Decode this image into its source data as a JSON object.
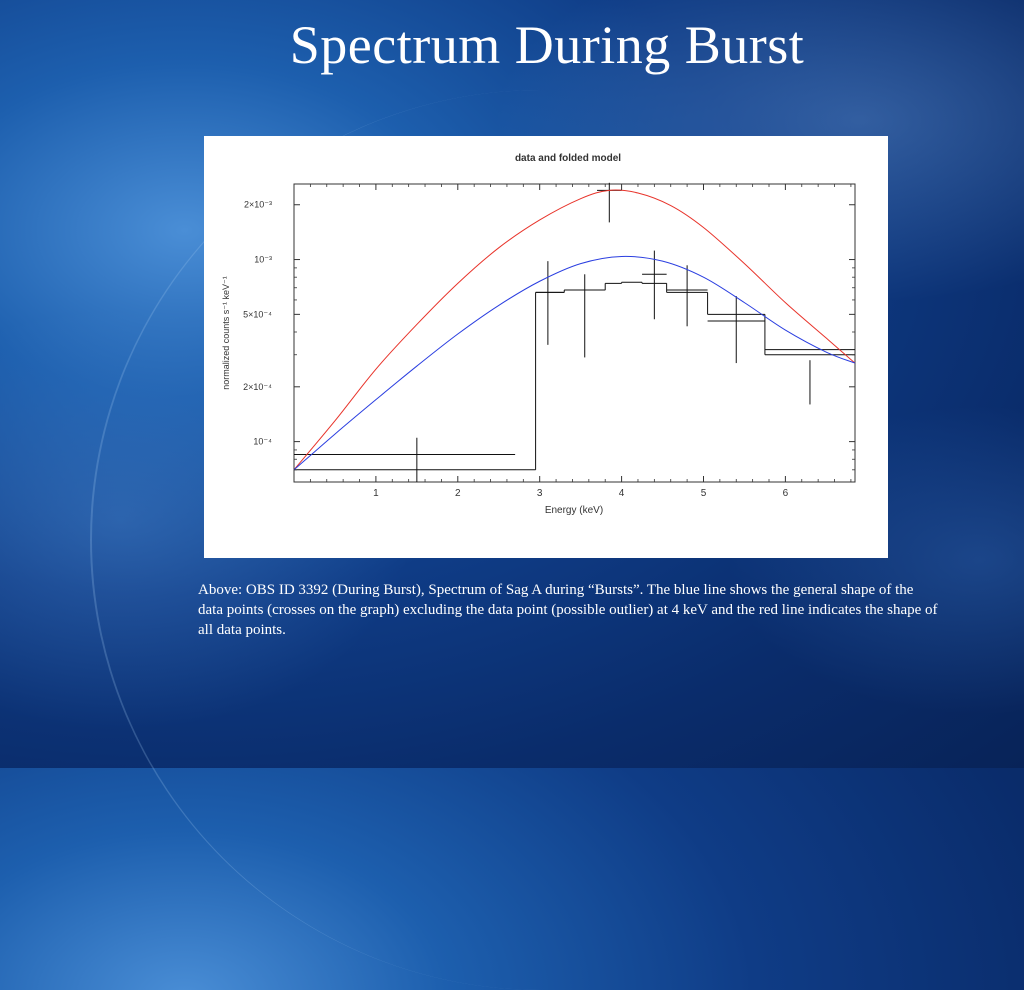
{
  "slide": {
    "title": "Spectrum During Burst",
    "caption": "Above: OBS ID 3392 (During Burst), Spectrum of Sag A during “Bursts”.  The blue line shows the general shape of the data points (crosses on the graph) excluding the data point (possible outlier) at 4 keV and the red line indicates the shape of all data points."
  },
  "chart_data": {
    "type": "scatter",
    "title": "data and folded model",
    "xlabel": "Energy (keV)",
    "ylabel": "normalized counts s⁻¹ keV⁻¹",
    "xlim": [
      0,
      6.85
    ],
    "ylim": [
      6e-05,
      0.0026
    ],
    "yscale": "log",
    "xticks": [
      1,
      2,
      3,
      4,
      5,
      6
    ],
    "yticks": [
      {
        "value": 0.0001,
        "label": "10⁻⁴"
      },
      {
        "value": 0.0002,
        "label": "2×10⁻⁴"
      },
      {
        "value": 0.0005,
        "label": "5×10⁻⁴"
      },
      {
        "value": 0.001,
        "label": "10⁻³"
      },
      {
        "value": 0.002,
        "label": "2×10⁻³"
      }
    ],
    "colors": {
      "red_curve": "#e8332a",
      "blue_curve": "#2a3ee0",
      "data": "#111111"
    },
    "series": [
      {
        "kind": "data_points",
        "points": [
          {
            "x": 1.5,
            "y": 8.5e-05,
            "xlo": 0.0,
            "xhi": 2.7,
            "ylo": 6e-05,
            "yhi": 0.000105
          },
          {
            "x": 3.1,
            "y": 0.00066,
            "xlo": 2.95,
            "xhi": 3.3,
            "ylo": 0.00034,
            "yhi": 0.00098
          },
          {
            "x": 3.55,
            "y": 0.00068,
            "xlo": 3.3,
            "xhi": 3.8,
            "ylo": 0.00029,
            "yhi": 0.00083
          },
          {
            "x": 3.85,
            "y": 0.0024,
            "xlo": 3.7,
            "xhi": 4.0,
            "ylo": 0.0016,
            "yhi": 0.00264
          },
          {
            "x": 4.4,
            "y": 0.00083,
            "xlo": 4.25,
            "xhi": 4.55,
            "ylo": 0.00047,
            "yhi": 0.00112
          },
          {
            "x": 4.8,
            "y": 0.00068,
            "xlo": 4.55,
            "xhi": 5.05,
            "ylo": 0.00043,
            "yhi": 0.00093
          },
          {
            "x": 5.4,
            "y": 0.00046,
            "xlo": 5.05,
            "xhi": 5.75,
            "ylo": 0.00027,
            "yhi": 0.00063
          },
          {
            "x": 6.3,
            "y": 0.00032,
            "xlo": 5.75,
            "xhi": 6.85,
            "ylo": 0.00016,
            "yhi": 0.00028
          }
        ]
      },
      {
        "kind": "folded_model_step",
        "steps": [
          {
            "x0": 0.0,
            "x1": 2.95,
            "y": 7e-05
          },
          {
            "x0": 2.95,
            "x1": 3.3,
            "y": 0.00066
          },
          {
            "x0": 3.3,
            "x1": 3.8,
            "y": 0.00068
          },
          {
            "x0": 3.8,
            "x1": 4.0,
            "y": 0.00074
          },
          {
            "x0": 4.0,
            "x1": 4.25,
            "y": 0.00075
          },
          {
            "x0": 4.25,
            "x1": 4.55,
            "y": 0.00074
          },
          {
            "x0": 4.55,
            "x1": 5.05,
            "y": 0.00066
          },
          {
            "x0": 5.05,
            "x1": 5.75,
            "y": 0.0005
          },
          {
            "x0": 5.75,
            "x1": 6.85,
            "y": 0.0003
          }
        ]
      },
      {
        "kind": "curve",
        "color": "red",
        "points": [
          [
            0.0,
            7e-05
          ],
          [
            0.5,
            0.00013
          ],
          [
            1.0,
            0.00025
          ],
          [
            1.5,
            0.00044
          ],
          [
            2.0,
            0.00074
          ],
          [
            2.5,
            0.00116
          ],
          [
            3.0,
            0.00165
          ],
          [
            3.5,
            0.00216
          ],
          [
            3.85,
            0.0024
          ],
          [
            4.2,
            0.00232
          ],
          [
            4.6,
            0.00198
          ],
          [
            5.0,
            0.0015
          ],
          [
            5.5,
            0.00095
          ],
          [
            6.0,
            0.00058
          ],
          [
            6.5,
            0.00037
          ],
          [
            6.85,
            0.00027
          ]
        ]
      },
      {
        "kind": "curve",
        "color": "blue",
        "points": [
          [
            0.0,
            7e-05
          ],
          [
            0.5,
            0.00011
          ],
          [
            1.0,
            0.00017
          ],
          [
            1.5,
            0.00026
          ],
          [
            2.0,
            0.00039
          ],
          [
            2.5,
            0.00056
          ],
          [
            3.0,
            0.00076
          ],
          [
            3.5,
            0.00095
          ],
          [
            4.0,
            0.00104
          ],
          [
            4.5,
            0.00098
          ],
          [
            5.0,
            0.0008
          ],
          [
            5.5,
            0.00058
          ],
          [
            6.0,
            0.00041
          ],
          [
            6.5,
            0.00031
          ],
          [
            6.85,
            0.00027
          ]
        ]
      }
    ]
  }
}
